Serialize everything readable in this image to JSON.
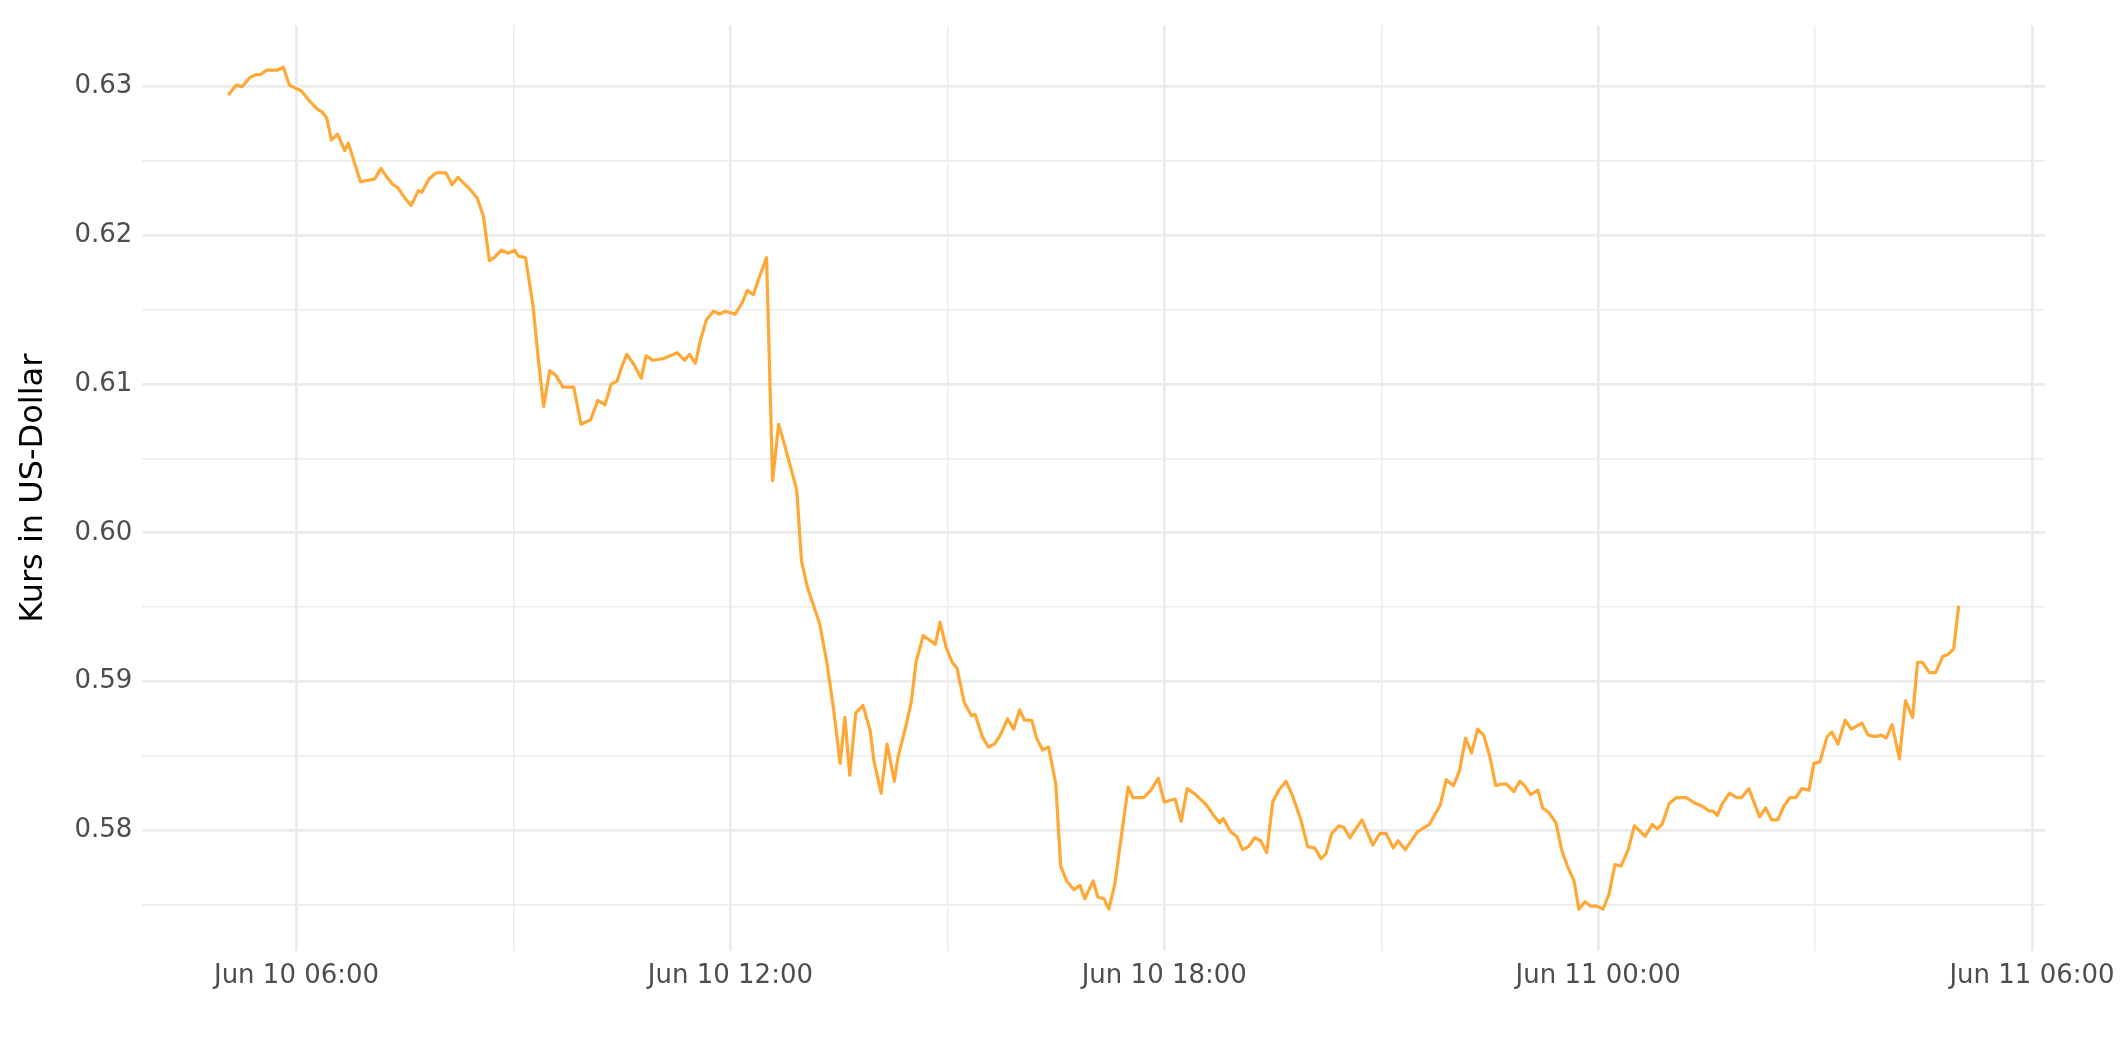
{
  "chart_data": {
    "type": "line",
    "ylabel": "Kurs in US-Dollar",
    "color": "#ffa836",
    "marker": "none",
    "line_style": "solid",
    "grid": true,
    "legend": false,
    "xlim": [
      "--06-10T03:52",
      "--06-11T06:11"
    ],
    "ylim": [
      0.5719,
      0.6341
    ],
    "xticks": [
      {
        "value": "--06-10T06:00",
        "label": "Jun 10 06:00"
      },
      {
        "value": "--06-10T09:00",
        "label": null
      },
      {
        "value": "--06-10T12:00",
        "label": "Jun 10 12:00"
      },
      {
        "value": "--06-10T15:00",
        "label": null
      },
      {
        "value": "--06-10T18:00",
        "label": "Jun 10 18:00"
      },
      {
        "value": "--06-10T21:00",
        "label": null
      },
      {
        "value": "--06-11T00:00",
        "label": "Jun 11 00:00"
      },
      {
        "value": "--06-11T03:00",
        "label": null
      },
      {
        "value": "--06-11T06:00",
        "label": "Jun 11 06:00"
      }
    ],
    "yticks": [
      {
        "value": 0.575,
        "label": null
      },
      0.58,
      {
        "value": 0.585,
        "label": null
      },
      0.59,
      {
        "value": 0.595,
        "label": null
      },
      {
        "value": 0.6,
        "label": "0.60"
      },
      {
        "value": 0.605,
        "label": null
      },
      0.61,
      {
        "value": 0.615,
        "label": null
      },
      0.62,
      {
        "value": 0.625,
        "label": null
      },
      0.63
    ],
    "x": [
      "--06-10T05:04",
      "--06-10T05:10",
      "--06-10T05:15",
      "--06-10T05:21",
      "--06-10T05:26",
      "--06-10T05:30",
      "--06-10T05:35",
      "--06-10T05:44",
      "--06-10T05:49",
      "--06-10T05:54",
      "--06-10T06:04",
      "--06-10T06:10",
      "--06-10T06:17",
      "--06-10T06:21",
      "--06-10T06:25",
      "--06-10T06:29",
      "--06-10T06:34",
      "--06-10T06:40",
      "--06-10T06:43",
      "--06-10T06:53",
      "--06-10T07:05",
      "--06-10T07:10",
      "--06-10T07:15",
      "--06-10T07:20",
      "--06-10T07:24",
      "--06-10T07:30",
      "--06-10T07:35",
      "--06-10T07:41",
      "--06-10T07:44",
      "--06-10T07:50",
      "--06-10T07:56",
      "--06-10T08:04",
      "--06-10T08:09",
      "--06-10T08:14",
      "--06-10T08:20",
      "--06-10T08:25",
      "--06-10T08:30",
      "--06-10T08:35",
      "--06-10T08:40",
      "--06-10T08:44",
      "--06-10T08:50",
      "--06-10T08:56",
      "--06-10T09:01",
      "--06-10T09:04",
      "--06-10T09:10",
      "--06-10T09:16",
      "--06-10T09:21",
      "--06-10T09:25",
      "--06-10T09:30",
      "--06-10T09:35",
      "--06-10T09:41",
      "--06-10T09:50",
      "--06-10T09:56",
      "--06-10T10:04",
      "--06-10T10:10",
      "--06-10T10:16",
      "--06-10T10:21",
      "--06-10T10:26",
      "--06-10T10:30",
      "--06-10T10:34",
      "--06-10T10:40",
      "--06-10T10:46",
      "--06-10T10:50",
      "--06-10T10:56",
      "--06-10T11:04",
      "--06-10T11:16",
      "--06-10T11:22",
      "--06-10T11:26",
      "--06-10T11:31",
      "--06-10T11:35",
      "--06-10T11:40",
      "--06-10T11:46",
      "--06-10T11:51",
      "--06-10T11:56",
      "--06-10T12:04",
      "--06-10T12:10",
      "--06-10T12:14",
      "--06-10T12:19",
      "--06-10T12:24",
      "--06-10T12:30",
      "--06-10T12:35",
      "--06-10T12:40",
      "--06-10T12:46",
      "--06-10T12:55",
      "--06-10T12:59",
      "--06-10T13:04",
      "--06-10T13:14",
      "--06-10T13:20",
      "--06-10T13:26",
      "--06-10T13:31",
      "--06-10T13:35",
      "--06-10T13:39",
      "--06-10T13:44",
      "--06-10T13:50",
      "--06-10T13:56",
      "--06-10T13:59",
      "--06-10T14:05",
      "--06-10T14:10",
      "--06-10T14:16",
      "--06-10T14:19",
      "--06-10T14:25",
      "--06-10T14:30",
      "--06-10T14:34",
      "--06-10T14:40",
      "--06-10T14:50",
      "--06-10T14:54",
      "--06-10T14:59",
      "--06-10T15:04",
      "--06-10T15:08",
      "--06-10T15:14",
      "--06-10T15:20",
      "--06-10T15:23",
      "--06-10T15:29",
      "--06-10T15:34",
      "--06-10T15:39",
      "--06-10T15:44",
      "--06-10T15:50",
      "--06-10T15:55",
      "--06-10T16:00",
      "--06-10T16:04",
      "--06-10T16:10",
      "--06-10T16:14",
      "--06-10T16:19",
      "--06-10T16:24",
      "--06-10T16:30",
      "--06-10T16:34",
      "--06-10T16:39",
      "--06-10T16:45",
      "--06-10T16:50",
      "--06-10T16:54",
      "--06-10T17:01",
      "--06-10T17:05",
      "--06-10T17:10",
      "--06-10T17:14",
      "--06-10T17:19",
      "--06-10T17:24",
      "--06-10T17:30",
      "--06-10T17:34",
      "--06-10T17:43",
      "--06-10T17:49",
      "--06-10T17:55",
      "--06-10T18:00",
      "--06-10T18:09",
      "--06-10T18:14",
      "--06-10T18:19",
      "--06-10T18:26",
      "--06-10T18:35",
      "--06-10T18:41",
      "--06-10T18:46",
      "--06-10T18:49",
      "--06-10T18:55",
      "--06-10T19:00",
      "--06-10T19:05",
      "--06-10T19:10",
      "--06-10T19:15",
      "--06-10T19:20",
      "--06-10T19:25",
      "--06-10T19:30",
      "--06-10T19:35",
      "--06-10T19:41",
      "--06-10T19:46",
      "--06-10T19:53",
      "--06-10T19:59",
      "--06-10T20:05",
      "--06-10T20:10",
      "--06-10T20:14",
      "--06-10T20:19",
      "--06-10T20:25",
      "--06-10T20:29",
      "--06-10T20:34",
      "--06-10T20:44",
      "--06-10T20:53",
      "--06-10T20:59",
      "--06-10T21:04",
      "--06-10T21:10",
      "--06-10T21:14",
      "--06-10T21:20",
      "--06-10T21:30",
      "--06-10T21:40",
      "--06-10T21:49",
      "--06-10T21:54",
      "--06-10T22:00",
      "--06-10T22:05",
      "--06-10T22:10",
      "--06-10T22:15",
      "--06-10T22:20",
      "--06-10T22:25",
      "--06-10T22:30",
      "--06-10T22:35",
      "--06-10T22:39",
      "--06-10T22:44",
      "--06-10T22:50",
      "--06-10T22:55",
      "--06-10T22:59",
      "--06-10T23:04",
      "--06-10T23:10",
      "--06-10T23:14",
      "--06-10T23:19",
      "--06-10T23:25",
      "--06-10T23:30",
      "--06-10T23:35",
      "--06-10T23:40",
      "--06-10T23:44",
      "--06-10T23:49",
      "--06-10T23:54",
      "--06-10T23:59",
      "--06-11T00:04",
      "--06-11T00:09",
      "--06-11T00:14",
      "--06-11T00:19",
      "--06-11T00:25",
      "--06-11T00:30",
      "--06-11T00:39",
      "--06-11T00:45",
      "--06-11T00:49",
      "--06-11T00:53",
      "--06-11T00:59",
      "--06-11T01:05",
      "--06-11T01:13",
      "--06-11T01:21",
      "--06-11T01:27",
      "--06-11T01:32",
      "--06-11T01:35",
      "--06-11T01:39",
      "--06-11T01:43",
      "--06-11T01:49",
      "--06-11T01:55",
      "--06-11T01:59",
      "--06-11T02:05",
      "--06-11T02:14",
      "--06-11T02:19",
      "--06-11T02:24",
      "--06-11T02:29",
      "--06-11T02:34",
      "--06-11T02:39",
      "--06-11T02:44",
      "--06-11T02:49",
      "--06-11T02:55",
      "--06-11T02:59",
      "--06-11T03:04",
      "--06-11T03:10",
      "--06-11T03:14",
      "--06-11T03:19",
      "--06-11T03:25",
      "--06-11T03:30",
      "--06-11T03:39",
      "--06-11T03:44",
      "--06-11T03:50",
      "--06-11T03:55",
      "--06-11T03:59",
      "--06-11T04:04",
      "--06-11T04:10",
      "--06-11T04:15",
      "--06-11T04:21",
      "--06-11T04:25",
      "--06-11T04:29",
      "--06-11T04:35",
      "--06-11T04:40",
      "--06-11T04:46",
      "--06-11T04:50",
      "--06-11T04:55",
      "--06-11T04:59"
    ],
    "values": [
      0.6295,
      0.6301,
      0.63,
      0.6306,
      0.6308,
      0.6308,
      0.6311,
      0.6311,
      0.6313,
      0.6301,
      0.6297,
      0.6291,
      0.6285,
      0.6283,
      0.6279,
      0.6264,
      0.6268,
      0.6257,
      0.6262,
      0.6236,
      0.6238,
      0.6245,
      0.6239,
      0.6234,
      0.6232,
      0.6225,
      0.622,
      0.623,
      0.6229,
      0.6238,
      0.6242,
      0.6242,
      0.6234,
      0.6239,
      0.6234,
      0.623,
      0.6225,
      0.6213,
      0.6183,
      0.6185,
      0.619,
      0.6188,
      0.619,
      0.6186,
      0.6185,
      0.6154,
      0.6114,
      0.6085,
      0.6109,
      0.6106,
      0.6098,
      0.6098,
      0.6073,
      0.6076,
      0.6089,
      0.6086,
      0.61,
      0.6102,
      0.6112,
      0.612,
      0.6113,
      0.6104,
      0.6119,
      0.6116,
      0.6117,
      0.6121,
      0.6116,
      0.612,
      0.6114,
      0.6129,
      0.6143,
      0.6149,
      0.6147,
      0.6149,
      0.6147,
      0.6155,
      0.6163,
      0.616,
      0.6172,
      0.6185,
      0.6035,
      0.6073,
      0.6056,
      0.6029,
      0.5981,
      0.5963,
      0.5939,
      0.5913,
      0.5879,
      0.5845,
      0.5876,
      0.5837,
      0.5879,
      0.5884,
      0.5867,
      0.5847,
      0.5825,
      0.5858,
      0.5833,
      0.5849,
      0.5868,
      0.5886,
      0.5913,
      0.5931,
      0.5925,
      0.594,
      0.5923,
      0.5913,
      0.5909,
      0.5886,
      0.5877,
      0.5878,
      0.5863,
      0.5856,
      0.5858,
      0.5864,
      0.5875,
      0.5868,
      0.5881,
      0.5874,
      0.5874,
      0.5862,
      0.5854,
      0.5856,
      0.5831,
      0.5776,
      0.5766,
      0.576,
      0.5763,
      0.5754,
      0.5766,
      0.5755,
      0.5754,
      0.5747,
      0.5764,
      0.5794,
      0.5829,
      0.5822,
      0.5822,
      0.5827,
      0.5835,
      0.5819,
      0.5821,
      0.5806,
      0.5828,
      0.5824,
      0.5817,
      0.581,
      0.5805,
      0.5808,
      0.5799,
      0.5796,
      0.5787,
      0.5789,
      0.5795,
      0.5793,
      0.5785,
      0.5819,
      0.5827,
      0.5833,
      0.5824,
      0.5808,
      0.5789,
      0.5788,
      0.5781,
      0.5784,
      0.5798,
      0.5803,
      0.5802,
      0.5795,
      0.5807,
      0.579,
      0.5798,
      0.5798,
      0.5788,
      0.5793,
      0.5787,
      0.5799,
      0.5804,
      0.5817,
      0.5834,
      0.583,
      0.584,
      0.5862,
      0.5852,
      0.5868,
      0.5864,
      0.585,
      0.583,
      0.5831,
      0.5831,
      0.5826,
      0.5833,
      0.583,
      0.5824,
      0.5827,
      0.5815,
      0.5812,
      0.5805,
      0.5786,
      0.5775,
      0.5766,
      0.5747,
      0.5752,
      0.5749,
      0.5749,
      0.5747,
      0.5757,
      0.5777,
      0.5776,
      0.5787,
      0.5803,
      0.5796,
      0.5804,
      0.5801,
      0.5804,
      0.5818,
      0.5822,
      0.5822,
      0.5818,
      0.5816,
      0.5813,
      0.5813,
      0.581,
      0.5818,
      0.5825,
      0.5822,
      0.5822,
      0.5828,
      0.5809,
      0.5815,
      0.5807,
      0.5807,
      0.5816,
      0.5822,
      0.5822,
      0.5828,
      0.5827,
      0.5845,
      0.5846,
      0.5863,
      0.5866,
      0.5858,
      0.5874,
      0.5868,
      0.5872,
      0.5864,
      0.5863,
      0.5864,
      0.5862,
      0.5871,
      0.5848,
      0.5887,
      0.5876,
      0.5913,
      0.5913,
      0.5906,
      0.5906,
      0.5917,
      0.5918,
      0.5922,
      0.595
    ]
  }
}
